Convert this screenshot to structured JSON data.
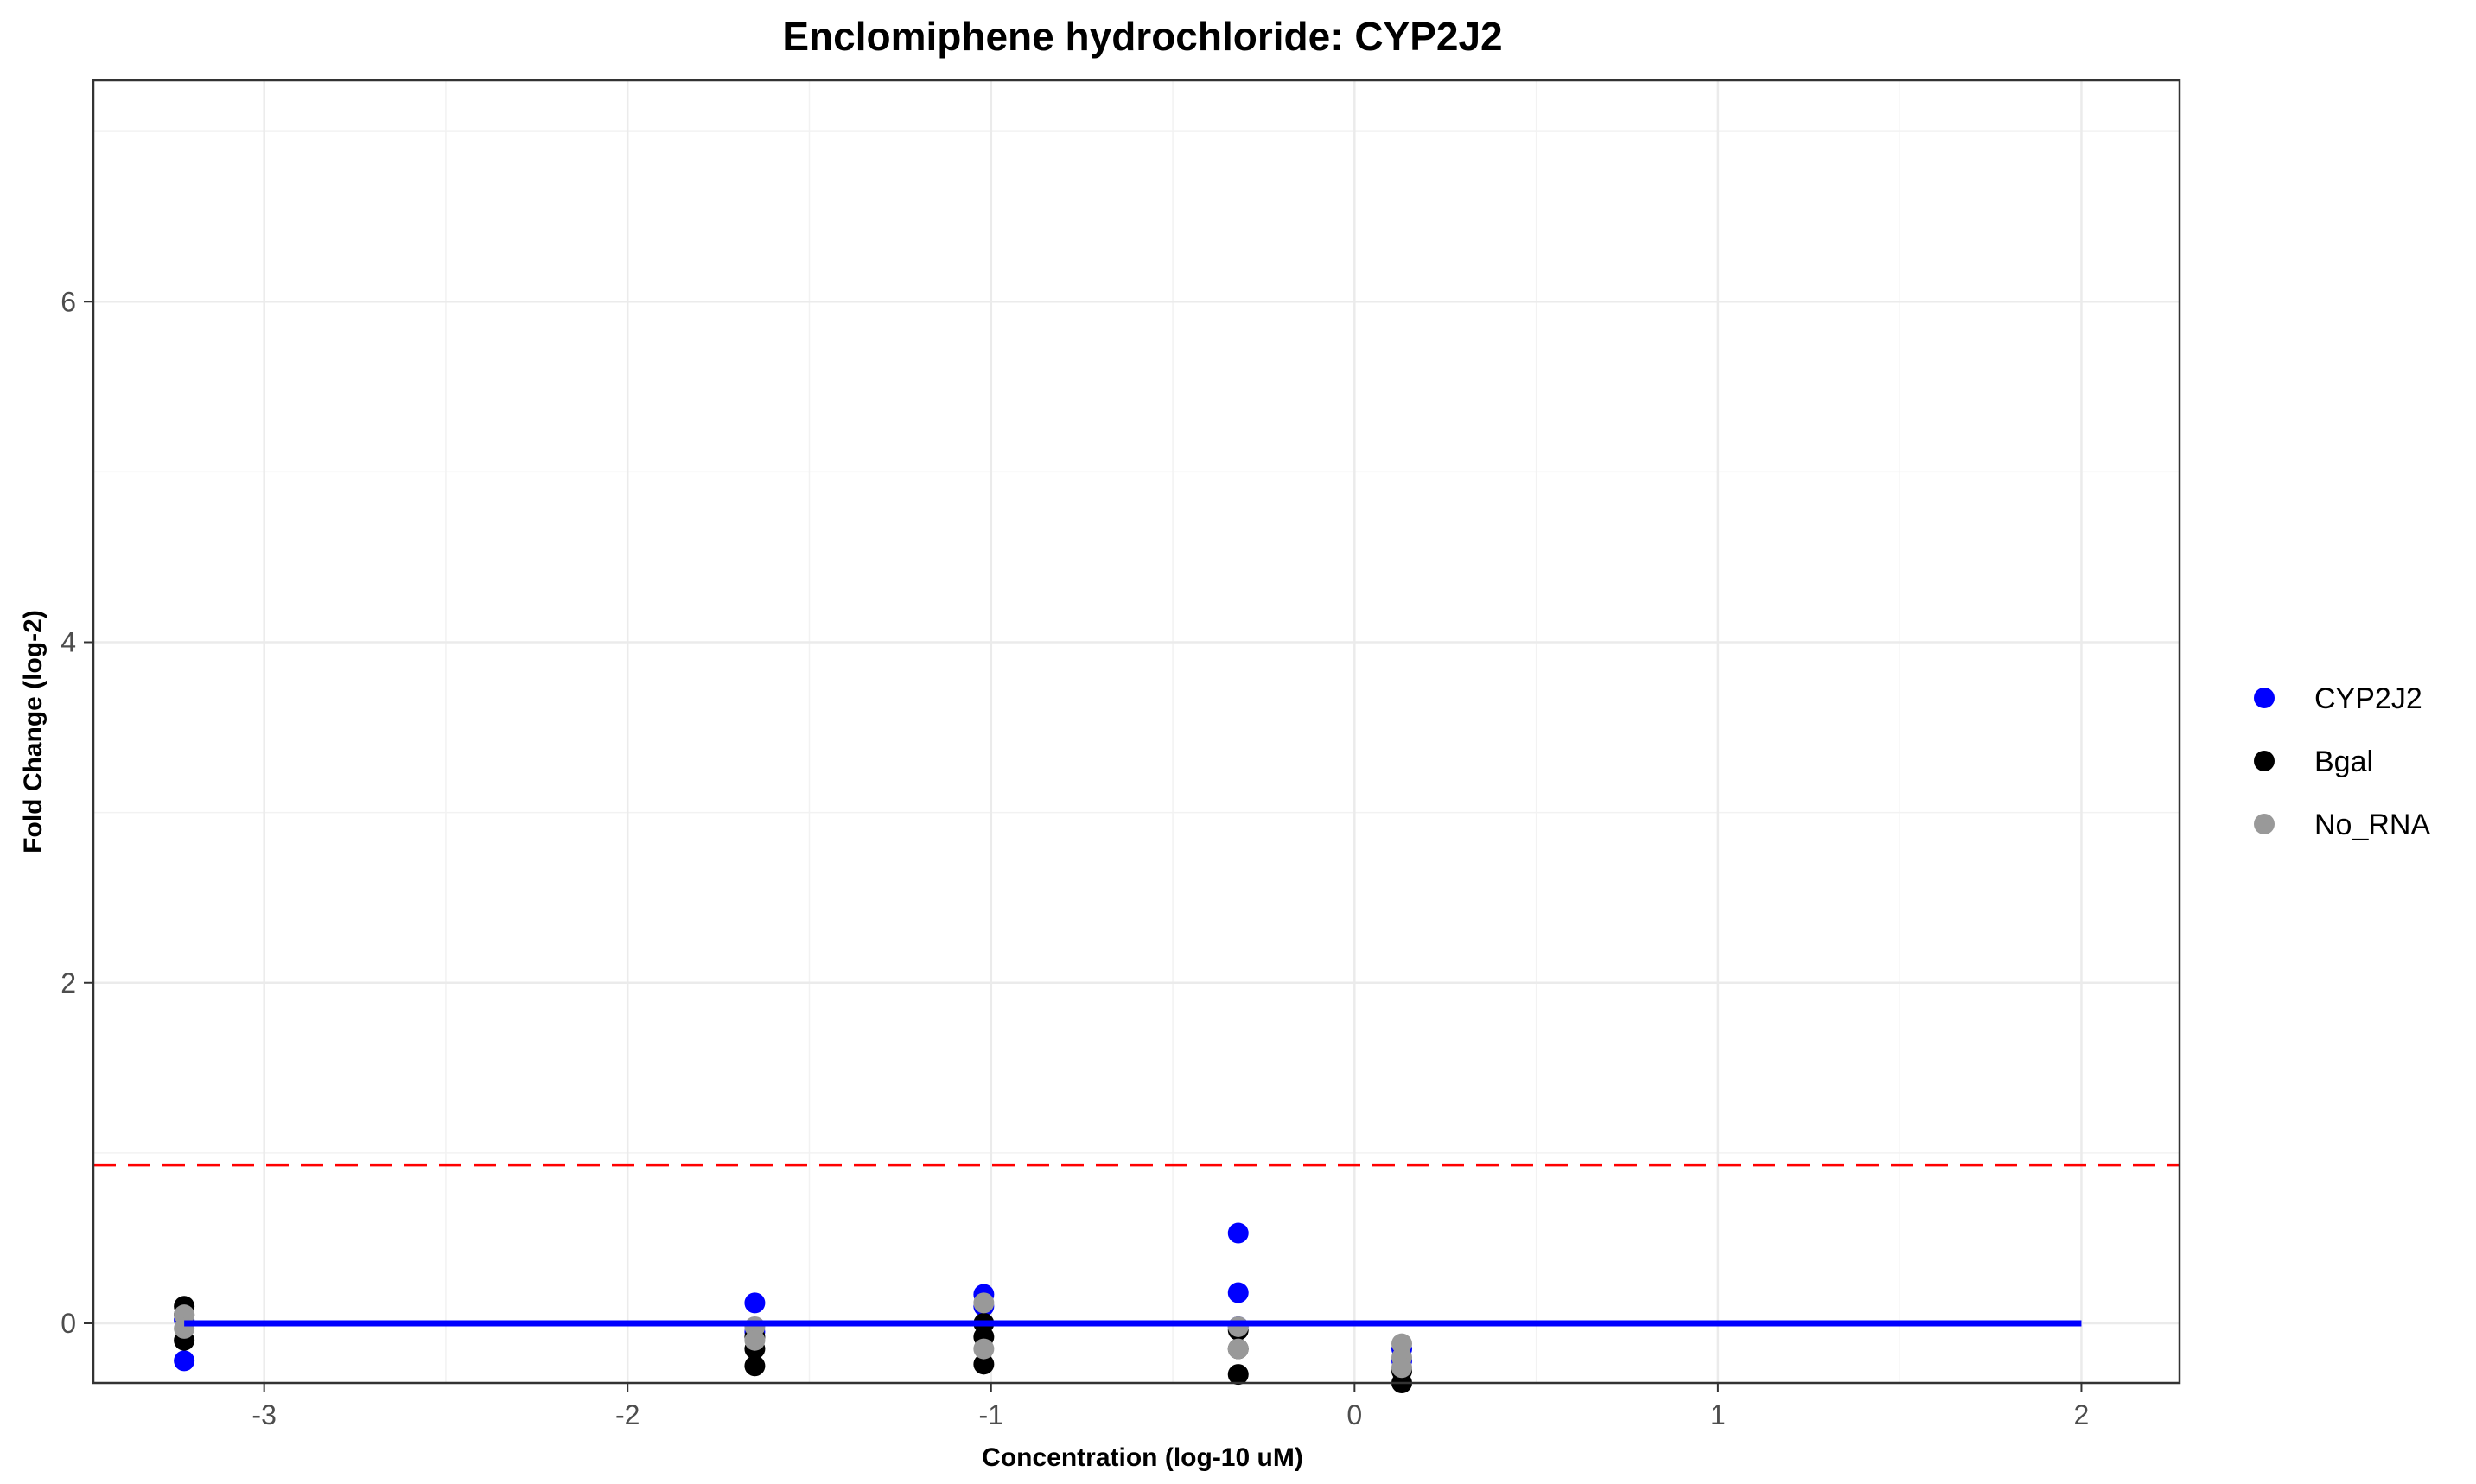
{
  "chart_data": {
    "type": "scatter",
    "title": "Enclomiphene hydrochloride: CYP2J2",
    "xlabel": "Concentration (log-10 uM)",
    "ylabel": "Fold Change (log-2)",
    "xlim": [
      -3.47,
      2.27
    ],
    "ylim": [
      -0.35,
      7.3
    ],
    "x_ticks": [
      -3,
      -2,
      -1,
      0,
      1,
      2
    ],
    "x_tick_labels": [
      "-3",
      "-2",
      "-1",
      "0",
      "1",
      "2"
    ],
    "y_ticks": [
      0,
      2,
      4,
      6
    ],
    "y_tick_labels": [
      "0",
      "2",
      "4",
      "6"
    ],
    "grid": true,
    "legend_position": "right",
    "threshold_line": {
      "y": 0.93,
      "color": "#ff0000",
      "style": "dashed"
    },
    "fit_line": {
      "x": [
        -3.22,
        2.0
      ],
      "y": [
        0,
        0
      ],
      "color": "#0000ff"
    },
    "series": [
      {
        "name": "CYP2J2",
        "color": "#0000ff",
        "points": [
          [
            -3.22,
            -0.22
          ],
          [
            -3.22,
            0.02
          ],
          [
            -1.65,
            0.12
          ],
          [
            -1.65,
            -0.05
          ],
          [
            -1.02,
            0.17
          ],
          [
            -1.02,
            0.1
          ],
          [
            -0.32,
            0.53
          ],
          [
            -0.32,
            0.18
          ],
          [
            -0.32,
            -0.02
          ],
          [
            0.13,
            -0.22
          ],
          [
            0.13,
            -0.15
          ]
        ]
      },
      {
        "name": "Bgal",
        "color": "#000000",
        "points": [
          [
            -3.22,
            0.1
          ],
          [
            -3.22,
            -0.1
          ],
          [
            -3.22,
            0.05
          ],
          [
            -1.65,
            -0.25
          ],
          [
            -1.65,
            -0.15
          ],
          [
            -1.65,
            -0.08
          ],
          [
            -1.02,
            -0.24
          ],
          [
            -1.02,
            -0.08
          ],
          [
            -1.02,
            0.0
          ],
          [
            -0.32,
            -0.3
          ],
          [
            -0.32,
            -0.15
          ],
          [
            -0.32,
            -0.04
          ],
          [
            0.13,
            -0.35
          ],
          [
            0.13,
            -0.28
          ]
        ]
      },
      {
        "name": "No_RNA",
        "color": "#999999",
        "points": [
          [
            -3.22,
            0.05
          ],
          [
            -3.22,
            -0.03
          ],
          [
            -1.65,
            -0.02
          ],
          [
            -1.65,
            -0.1
          ],
          [
            -1.02,
            0.12
          ],
          [
            -1.02,
            -0.15
          ],
          [
            -0.32,
            -0.02
          ],
          [
            -0.32,
            -0.15
          ],
          [
            0.13,
            -0.12
          ],
          [
            0.13,
            -0.2
          ],
          [
            0.13,
            -0.26
          ]
        ]
      }
    ]
  }
}
